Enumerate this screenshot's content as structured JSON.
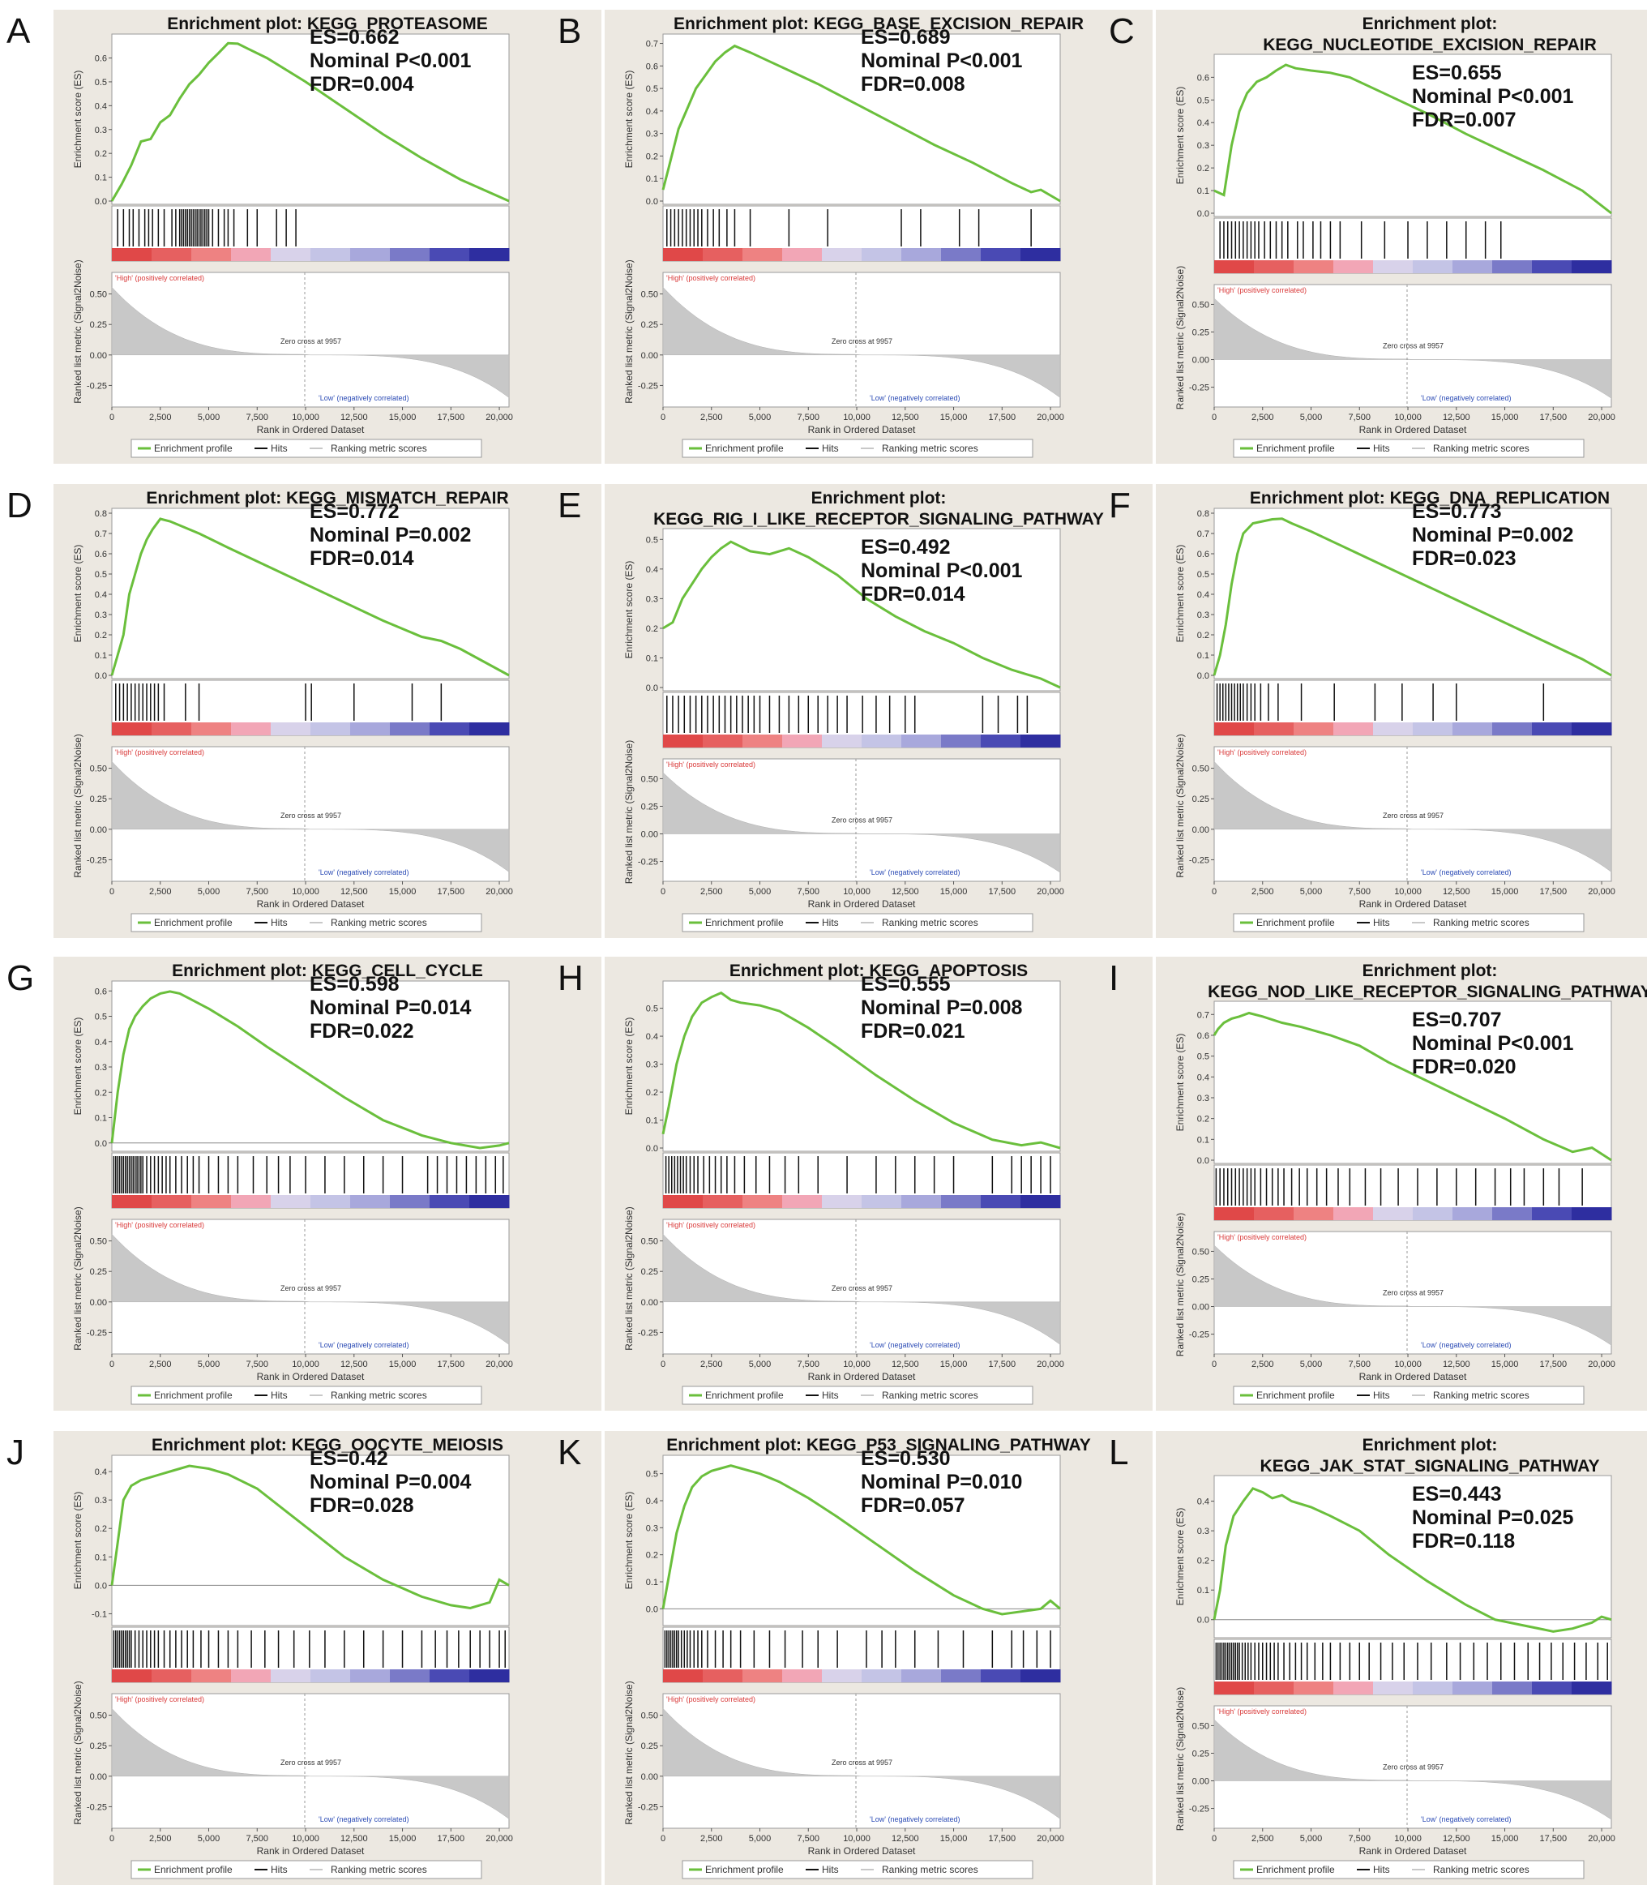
{
  "common": {
    "es_axis_label": "Enrichment score (ES)",
    "rank_axis_label": "Ranked list metric (Signal2Noise)",
    "x_axis_label": "Rank in Ordered Dataset",
    "high_label": "'High' (positively correlated)",
    "low_label": "'Low' (negatively correlated)",
    "zero_cross_label": "Zero cross at 9957",
    "legend": {
      "enrichment_profile": "Enrichment profile",
      "hits": "Hits",
      "ranking_metric_scores": "Ranking metric scores"
    },
    "x_ticks": [
      "0",
      "2,500",
      "5,000",
      "7,500",
      "10,000",
      "12,500",
      "15,000",
      "17,500",
      "20,000"
    ],
    "rank_ticks": [
      "0.50",
      "0.25",
      "0.00",
      "-0.25"
    ],
    "colors": {
      "enrichment_line": "#6abf3c",
      "hit_line": "#111111",
      "high_label": "#d93a3a",
      "low_label": "#2b4bb5"
    }
  },
  "chart_data": [
    {
      "type": "line",
      "letter": "A",
      "title_lines": [
        "Enrichment plot: KEGG_PROTEASOME"
      ],
      "es_ticks": [
        "0.6",
        "0.5",
        "0.4",
        "0.3",
        "0.2",
        "0.1",
        "0.0"
      ],
      "ylim": [
        0,
        0.68
      ],
      "stats": [
        "ES=0.662",
        "Nominal P<0.001",
        "FDR=0.004"
      ],
      "x": [
        0,
        500,
        1000,
        1500,
        2000,
        2500,
        3000,
        3500,
        4000,
        4500,
        5000,
        5500,
        6000,
        6500,
        7000,
        8000,
        10000,
        12000,
        14000,
        16000,
        18000,
        20500
      ],
      "es": [
        0.0,
        0.07,
        0.15,
        0.25,
        0.26,
        0.33,
        0.36,
        0.43,
        0.49,
        0.53,
        0.58,
        0.62,
        0.662,
        0.66,
        0.64,
        0.6,
        0.5,
        0.39,
        0.28,
        0.18,
        0.09,
        0.0
      ],
      "hits": [
        300,
        600,
        900,
        1100,
        1400,
        1700,
        1900,
        2100,
        2400,
        2700,
        3100,
        3300,
        3500,
        3600,
        3700,
        3800,
        3900,
        4000,
        4100,
        4200,
        4300,
        4400,
        4500,
        4600,
        4700,
        4800,
        4900,
        5000,
        5200,
        5500,
        5800,
        6000,
        6300,
        7000,
        7500,
        8500,
        9000,
        9500
      ]
    },
    {
      "type": "line",
      "letter": "B",
      "title_lines": [
        "Enrichment plot: KEGG_BASE_EXCISION_REPAIR"
      ],
      "es_ticks": [
        "0.7",
        "0.6",
        "0.5",
        "0.4",
        "0.3",
        "0.2",
        "0.1",
        "0.0"
      ],
      "ylim": [
        0,
        0.72
      ],
      "stats": [
        "ES=0.689",
        "Nominal P<0.001",
        "FDR=0.008"
      ],
      "x": [
        0,
        300,
        800,
        1200,
        1700,
        2200,
        2700,
        3200,
        3700,
        4500,
        5500,
        6500,
        8000,
        10000,
        12000,
        14000,
        16000,
        18000,
        19000,
        19500,
        20500
      ],
      "es": [
        0.05,
        0.15,
        0.32,
        0.4,
        0.5,
        0.56,
        0.62,
        0.66,
        0.689,
        0.66,
        0.62,
        0.58,
        0.52,
        0.43,
        0.34,
        0.25,
        0.17,
        0.08,
        0.04,
        0.05,
        0.0
      ],
      "hits": [
        200,
        400,
        600,
        800,
        1000,
        1200,
        1400,
        1600,
        1800,
        2000,
        2300,
        2600,
        2900,
        3300,
        3700,
        4500,
        6500,
        8500,
        12300,
        13300,
        15300,
        16300,
        19000
      ]
    },
    {
      "type": "line",
      "letter": "C",
      "title_lines": [
        "Enrichment plot:",
        "KEGG_NUCLEOTIDE_EXCISION_REPAIR"
      ],
      "es_ticks": [
        "0.6",
        "0.5",
        "0.4",
        "0.3",
        "0.2",
        "0.1",
        "0.0"
      ],
      "ylim": [
        0,
        0.68
      ],
      "stats": [
        "ES=0.655",
        "Nominal P<0.001",
        "FDR=0.007"
      ],
      "x": [
        0,
        500,
        900,
        1300,
        1700,
        2200,
        2700,
        3200,
        3700,
        4200,
        5000,
        6000,
        7000,
        9000,
        11000,
        13000,
        15000,
        17000,
        19000,
        20500
      ],
      "es": [
        0.1,
        0.08,
        0.3,
        0.45,
        0.53,
        0.58,
        0.6,
        0.63,
        0.655,
        0.64,
        0.63,
        0.62,
        0.6,
        0.52,
        0.44,
        0.35,
        0.27,
        0.19,
        0.1,
        0.0
      ],
      "hits": [
        300,
        500,
        700,
        900,
        1100,
        1300,
        1500,
        1700,
        1900,
        2100,
        2300,
        2600,
        2900,
        3200,
        3500,
        3800,
        4300,
        4600,
        5100,
        5500,
        6000,
        6500,
        7600,
        8800,
        10000,
        11000,
        12000,
        13000,
        14000,
        14800
      ]
    },
    {
      "type": "line",
      "letter": "D",
      "title_lines": [
        "Enrichment plot: KEGG_MISMATCH_REPAIR"
      ],
      "es_ticks": [
        "0.8",
        "0.7",
        "0.6",
        "0.5",
        "0.4",
        "0.3",
        "0.2",
        "0.1",
        "0.0"
      ],
      "ylim": [
        0,
        0.8
      ],
      "stats": [
        "ES=0.772",
        "Nominal P=0.002",
        "FDR=0.014"
      ],
      "x": [
        0,
        300,
        600,
        900,
        1200,
        1500,
        1800,
        2100,
        2500,
        3000,
        3500,
        4500,
        6000,
        8000,
        10000,
        12000,
        14000,
        16000,
        17000,
        18000,
        20500
      ],
      "es": [
        0.0,
        0.1,
        0.2,
        0.4,
        0.5,
        0.6,
        0.67,
        0.72,
        0.772,
        0.76,
        0.74,
        0.7,
        0.63,
        0.54,
        0.45,
        0.36,
        0.27,
        0.19,
        0.17,
        0.13,
        0.0
      ],
      "hits": [
        200,
        400,
        600,
        800,
        1000,
        1200,
        1400,
        1600,
        1800,
        2000,
        2200,
        2400,
        2700,
        3800,
        4500,
        10000,
        10300,
        12500,
        15500,
        17000
      ]
    },
    {
      "type": "line",
      "letter": "E",
      "title_lines": [
        "Enrichment plot:",
        "KEGG_RIG_I_LIKE_RECEPTOR_SIGNALING_PATHWAY"
      ],
      "es_ticks": [
        "0.5",
        "0.4",
        "0.3",
        "0.2",
        "0.1",
        "0.0"
      ],
      "ylim": [
        0,
        0.52
      ],
      "stats": [
        "ES=0.492",
        "Nominal P<0.001",
        "FDR=0.014"
      ],
      "x": [
        0,
        500,
        1000,
        1500,
        2000,
        2500,
        3000,
        3500,
        4500,
        5500,
        6500,
        7500,
        9000,
        10500,
        12000,
        13500,
        15000,
        16500,
        18000,
        19500,
        20500
      ],
      "es": [
        0.2,
        0.22,
        0.3,
        0.35,
        0.4,
        0.44,
        0.47,
        0.492,
        0.46,
        0.45,
        0.47,
        0.44,
        0.38,
        0.3,
        0.24,
        0.19,
        0.15,
        0.1,
        0.06,
        0.03,
        0.0
      ],
      "hits": [
        200,
        500,
        800,
        1100,
        1400,
        1700,
        2000,
        2300,
        2600,
        2900,
        3200,
        3500,
        3800,
        4100,
        4400,
        4700,
        5000,
        5500,
        6000,
        6500,
        7000,
        7500,
        8000,
        8500,
        9000,
        9500,
        10300,
        11000,
        11700,
        12500,
        13000,
        16500,
        17300,
        18300,
        18800
      ]
    },
    {
      "type": "line",
      "letter": "F",
      "title_lines": [
        "Enrichment plot: KEGG_DNA_REPLICATION"
      ],
      "es_ticks": [
        "0.8",
        "0.7",
        "0.6",
        "0.5",
        "0.4",
        "0.3",
        "0.2",
        "0.1",
        "0.0"
      ],
      "ylim": [
        0,
        0.8
      ],
      "stats": [
        "ES=0.773",
        "Nominal P=0.002",
        "FDR=0.023"
      ],
      "x": [
        0,
        300,
        600,
        900,
        1200,
        1500,
        2000,
        2500,
        3000,
        3500,
        4000,
        5000,
        7000,
        9000,
        11000,
        13000,
        15000,
        17000,
        19000,
        20500
      ],
      "es": [
        0.0,
        0.1,
        0.25,
        0.45,
        0.6,
        0.7,
        0.75,
        0.76,
        0.77,
        0.773,
        0.75,
        0.71,
        0.62,
        0.53,
        0.44,
        0.35,
        0.26,
        0.17,
        0.08,
        0.0
      ],
      "hits": [
        150,
        300,
        450,
        600,
        750,
        900,
        1050,
        1200,
        1350,
        1500,
        1700,
        1900,
        2100,
        2400,
        2800,
        3300,
        4500,
        6200,
        8300,
        9700,
        11300,
        12500,
        17000
      ]
    },
    {
      "type": "line",
      "letter": "G",
      "title_lines": [
        "Enrichment plot: KEGG_CELL_CYCLE"
      ],
      "es_ticks": [
        "0.6",
        "0.5",
        "0.4",
        "0.3",
        "0.2",
        "0.1",
        "0.0"
      ],
      "ylim": [
        -0.02,
        0.62
      ],
      "stats": [
        "ES=0.598",
        "Nominal P=0.014",
        "FDR=0.022"
      ],
      "x": [
        0,
        300,
        600,
        900,
        1200,
        1600,
        2000,
        2500,
        3000,
        3500,
        4000,
        5000,
        6500,
        8000,
        10000,
        12000,
        14000,
        16000,
        17500,
        19000,
        20000,
        20500
      ],
      "es": [
        0.0,
        0.2,
        0.35,
        0.45,
        0.5,
        0.54,
        0.57,
        0.59,
        0.598,
        0.59,
        0.57,
        0.53,
        0.46,
        0.38,
        0.28,
        0.18,
        0.09,
        0.03,
        0.0,
        -0.02,
        -0.01,
        0.0
      ],
      "hits": [
        100,
        200,
        300,
        400,
        500,
        600,
        700,
        800,
        900,
        1000,
        1100,
        1200,
        1300,
        1400,
        1500,
        1600,
        1800,
        2000,
        2200,
        2400,
        2600,
        2800,
        3000,
        3300,
        3600,
        3900,
        4200,
        4500,
        5000,
        5500,
        6000,
        6500,
        7300,
        8000,
        8600,
        9200,
        10000,
        11000,
        12000,
        13000,
        14000,
        15000,
        16300,
        16800,
        17300,
        17800,
        18300,
        18800,
        19300,
        19800,
        20200
      ]
    },
    {
      "type": "line",
      "letter": "H",
      "title_lines": [
        "Enrichment plot: KEGG_APOPTOSIS"
      ],
      "es_ticks": [
        "0.5",
        "0.4",
        "0.3",
        "0.2",
        "0.1",
        "0.0"
      ],
      "ylim": [
        0,
        0.58
      ],
      "stats": [
        "ES=0.555",
        "Nominal P=0.008",
        "FDR=0.021"
      ],
      "x": [
        0,
        300,
        700,
        1100,
        1500,
        2000,
        2500,
        3000,
        3500,
        4000,
        5000,
        6000,
        7500,
        9000,
        11000,
        13000,
        15000,
        17000,
        18500,
        19500,
        20500
      ],
      "es": [
        0.05,
        0.15,
        0.3,
        0.4,
        0.47,
        0.52,
        0.54,
        0.555,
        0.53,
        0.52,
        0.51,
        0.49,
        0.43,
        0.36,
        0.26,
        0.17,
        0.09,
        0.03,
        0.01,
        0.02,
        0.0
      ],
      "hits": [
        150,
        300,
        450,
        600,
        750,
        900,
        1050,
        1200,
        1400,
        1600,
        1800,
        2100,
        2400,
        2700,
        3000,
        3300,
        3700,
        4200,
        4800,
        5500,
        6300,
        7000,
        8000,
        9500,
        11000,
        12000,
        13000,
        14000,
        15000,
        17000,
        18000,
        18500,
        19000,
        19500,
        20000
      ]
    },
    {
      "type": "line",
      "letter": "I",
      "title_lines": [
        "Enrichment plot:",
        "KEGG_NOD_LIKE_RECEPTOR_SIGNALING_PATHWAY"
      ],
      "es_ticks": [
        "0.7",
        "0.6",
        "0.5",
        "0.4",
        "0.3",
        "0.2",
        "0.1",
        "0.0"
      ],
      "ylim": [
        0,
        0.74
      ],
      "stats": [
        "ES=0.707",
        "Nominal P<0.001",
        "FDR=0.020"
      ],
      "x": [
        0,
        200,
        500,
        900,
        1300,
        1800,
        2500,
        3500,
        4500,
        6000,
        7500,
        9000,
        11000,
        13000,
        15000,
        17000,
        18500,
        19500,
        20500
      ],
      "es": [
        0.6,
        0.63,
        0.66,
        0.68,
        0.69,
        0.707,
        0.69,
        0.66,
        0.64,
        0.6,
        0.55,
        0.47,
        0.38,
        0.29,
        0.2,
        0.1,
        0.04,
        0.06,
        0.0
      ],
      "hits": [
        100,
        300,
        500,
        700,
        900,
        1100,
        1300,
        1500,
        1700,
        1900,
        2100,
        2400,
        2700,
        3000,
        3300,
        3600,
        4000,
        4400,
        4800,
        5300,
        5800,
        6400,
        7000,
        7800,
        8600,
        9500,
        10500,
        11500,
        12500,
        13500,
        14500,
        15300,
        16000,
        17000,
        17800,
        19000
      ]
    },
    {
      "type": "line",
      "letter": "J",
      "title_lines": [
        "Enrichment plot: KEGG_OOCYTE_MEIOSIS"
      ],
      "es_ticks": [
        "0.4",
        "0.3",
        "0.2",
        "0.1",
        "0.0",
        "-0.1"
      ],
      "ylim": [
        -0.13,
        0.44
      ],
      "stats": [
        "ES=0.42",
        "Nominal P=0.004",
        "FDR=0.028"
      ],
      "x": [
        0,
        300,
        600,
        1000,
        1500,
        2000,
        2500,
        3000,
        3500,
        4000,
        5000,
        6000,
        7500,
        9000,
        10500,
        12000,
        14000,
        16000,
        17500,
        18500,
        19500,
        20000,
        20500
      ],
      "es": [
        0.0,
        0.15,
        0.3,
        0.35,
        0.37,
        0.38,
        0.39,
        0.4,
        0.41,
        0.42,
        0.41,
        0.39,
        0.34,
        0.26,
        0.18,
        0.1,
        0.02,
        -0.04,
        -0.07,
        -0.08,
        -0.06,
        0.02,
        0.0
      ],
      "hits": [
        100,
        200,
        300,
        400,
        500,
        600,
        700,
        800,
        900,
        1000,
        1200,
        1400,
        1600,
        1800,
        2000,
        2200,
        2400,
        2700,
        3000,
        3300,
        3600,
        3900,
        4200,
        4600,
        5000,
        5500,
        6000,
        6500,
        7200,
        7900,
        8600,
        9400,
        10200,
        11000,
        12000,
        13000,
        14000,
        15000,
        16000,
        16700,
        17300,
        17900,
        18500,
        19000,
        19500,
        20000,
        20300
      ]
    },
    {
      "type": "line",
      "letter": "K",
      "title_lines": [
        "Enrichment plot: KEGG_P53_SIGNALING_PATHWAY"
      ],
      "es_ticks": [
        "0.5",
        "0.4",
        "0.3",
        "0.2",
        "0.1",
        "0.0"
      ],
      "ylim": [
        -0.05,
        0.55
      ],
      "stats": [
        "ES=0.530",
        "Nominal P=0.010",
        "FDR=0.057"
      ],
      "x": [
        0,
        300,
        700,
        1100,
        1500,
        2000,
        2500,
        3000,
        3500,
        4000,
        5000,
        6000,
        7500,
        9000,
        11000,
        13000,
        15000,
        16500,
        17500,
        18500,
        19500,
        20000,
        20500
      ],
      "es": [
        0.0,
        0.12,
        0.28,
        0.38,
        0.45,
        0.49,
        0.51,
        0.52,
        0.53,
        0.52,
        0.5,
        0.47,
        0.41,
        0.34,
        0.24,
        0.14,
        0.05,
        0.0,
        -0.02,
        -0.01,
        0.0,
        0.03,
        0.0
      ],
      "hits": [
        100,
        200,
        300,
        400,
        500,
        600,
        700,
        800,
        950,
        1100,
        1250,
        1400,
        1600,
        1800,
        2000,
        2300,
        2700,
        3100,
        3500,
        4000,
        4700,
        5500,
        6300,
        7200,
        8000,
        9000,
        10500,
        11300,
        12000,
        13000,
        14200,
        15500,
        17000,
        18000,
        18600,
        19300,
        20000
      ]
    },
    {
      "type": "line",
      "letter": "L",
      "title_lines": [
        "Enrichment plot:",
        "KEGG_JAK_STAT_SIGNALING_PATHWAY"
      ],
      "es_ticks": [
        "0.4",
        "0.3",
        "0.2",
        "0.1",
        "0.0"
      ],
      "ylim": [
        -0.05,
        0.47
      ],
      "stats": [
        "ES=0.443",
        "Nominal P=0.025",
        "FDR=0.118"
      ],
      "x": [
        0,
        300,
        600,
        1000,
        1500,
        2000,
        2500,
        3000,
        3500,
        4000,
        5000,
        6000,
        7500,
        9000,
        11000,
        13000,
        14500,
        16000,
        17500,
        18500,
        19500,
        20000,
        20500
      ],
      "es": [
        0.0,
        0.1,
        0.25,
        0.35,
        0.4,
        0.443,
        0.43,
        0.41,
        0.42,
        0.4,
        0.38,
        0.35,
        0.3,
        0.22,
        0.13,
        0.05,
        0.0,
        -0.02,
        -0.04,
        -0.03,
        -0.01,
        0.01,
        0.0
      ],
      "hits": [
        100,
        200,
        300,
        400,
        500,
        600,
        700,
        800,
        900,
        1000,
        1100,
        1200,
        1300,
        1450,
        1600,
        1750,
        1900,
        2100,
        2300,
        2500,
        2700,
        2900,
        3100,
        3300,
        3600,
        3900,
        4200,
        4500,
        4800,
        5200,
        5600,
        6000,
        6500,
        7000,
        7500,
        8000,
        8600,
        9200,
        9800,
        10500,
        11200,
        12000,
        12700,
        13400,
        14100,
        14800,
        15500,
        16200,
        16800,
        17400,
        18000,
        18600,
        19200,
        19800,
        20300
      ]
    }
  ]
}
